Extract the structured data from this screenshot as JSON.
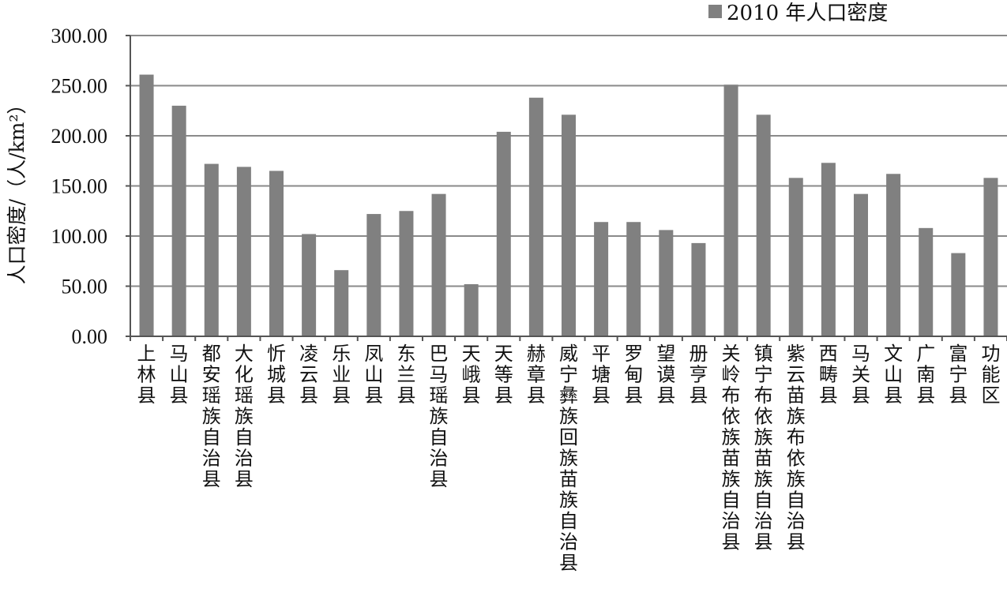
{
  "chart_data": {
    "type": "bar",
    "ylabel": "人口密度/（人/km²）",
    "legend": [
      "2010 年人口密度"
    ],
    "legend_position": "top-right",
    "ylim": [
      0,
      300
    ],
    "yticks": [
      "0.00",
      "50.00",
      "100.00",
      "150.00",
      "200.00",
      "250.00",
      "300.00"
    ],
    "grid": true,
    "bar_color": "#808080",
    "categories": [
      "上林县",
      "马山县",
      "都安瑶族自治县",
      "大化瑶族自治县",
      "忻城县",
      "凌云县",
      "乐业县",
      "凤山县",
      "东兰县",
      "巴马瑶族自治县",
      "天峨县",
      "天等县",
      "赫章县",
      "威宁彝族回族苗族自治县",
      "平塘县",
      "罗甸县",
      "望谟县",
      "册亨县",
      "关岭布依族苗族自治县",
      "镇宁布依族苗族自治县",
      "紫云苗族布依族自治县",
      "西畴县",
      "马关县",
      "文山县",
      "广南县",
      "富宁县",
      "功能区"
    ],
    "series": [
      {
        "name": "2010 年人口密度",
        "values": [
          261,
          230,
          172,
          169,
          165,
          102,
          66,
          122,
          125,
          142,
          52,
          204,
          238,
          221,
          114,
          114,
          106,
          93,
          251,
          221,
          158,
          173,
          142,
          162,
          108,
          83,
          158
        ]
      }
    ]
  }
}
